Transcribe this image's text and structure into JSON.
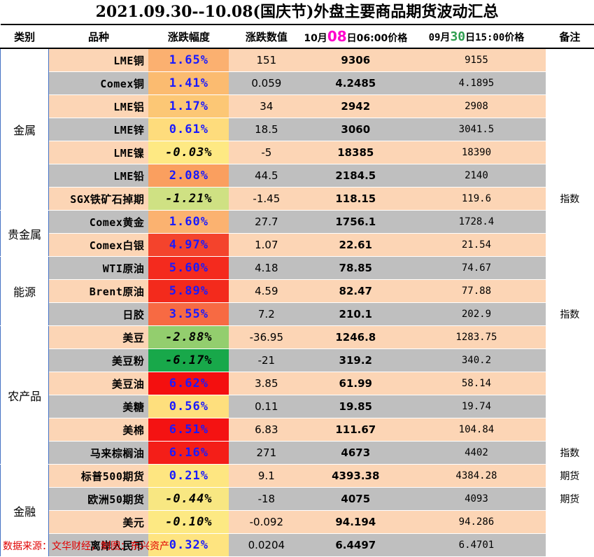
{
  "title": "2021.09.30--10.08(国庆节)外盘主要商品期货波动汇总",
  "headers": {
    "category": "类别",
    "name": "品种",
    "pct": "涨跌幅度",
    "change": "涨跌数值",
    "latest_prefix": "10月",
    "latest_day": "08",
    "latest_suffix": "日06:00价格",
    "prev_prefix": "09月",
    "prev_day": "30",
    "prev_suffix": "日15:00价格",
    "note": "备注"
  },
  "colors": {
    "row_odd": "#fcd5b5",
    "row_even": "#bfbfbf",
    "pct_positive_text": "#1a1aff",
    "footer": "#e00000",
    "highlight_day_latest": "#ff00cc",
    "highlight_day_prev": "#2e9e4f"
  },
  "categories": [
    {
      "label": "金属",
      "rows": [
        {
          "name": "LME铜",
          "pct": "1.65%",
          "change": "151",
          "latest": "9306",
          "prev": "9155",
          "note": "",
          "pct_bg": "#fbb070"
        },
        {
          "name": "Comex铜",
          "pct": "1.41%",
          "change": "0.059",
          "latest": "4.2485",
          "prev": "4.1895",
          "note": "",
          "pct_bg": "#fbbb70"
        },
        {
          "name": "LME铝",
          "pct": "1.17%",
          "change": "34",
          "latest": "2942",
          "prev": "2908",
          "note": "",
          "pct_bg": "#fcc775"
        },
        {
          "name": "LME锌",
          "pct": "0.61%",
          "change": "18.5",
          "latest": "3060",
          "prev": "3041.5",
          "note": "",
          "pct_bg": "#fedc7c"
        },
        {
          "name": "LME镍",
          "pct": "-0.03%",
          "change": "-5",
          "latest": "18385",
          "prev": "18390",
          "note": "",
          "pct_bg": "#fee983"
        },
        {
          "name": "LME铅",
          "pct": "2.08%",
          "change": "44.5",
          "latest": "2184.5",
          "prev": "2140",
          "note": "",
          "pct_bg": "#fa9f5f"
        },
        {
          "name": "SGX铁矿石掉期",
          "pct": "-1.21%",
          "change": "-1.45",
          "latest": "118.15",
          "prev": "119.6",
          "note": "指数",
          "pct_bg": "#cfe183"
        }
      ]
    },
    {
      "label": "贵金属",
      "rows": [
        {
          "name": "Comex黄金",
          "pct": "1.60%",
          "change": "27.7",
          "latest": "1756.1",
          "prev": "1728.4",
          "note": "",
          "pct_bg": "#fbb270"
        },
        {
          "name": "Comex白银",
          "pct": "4.97%",
          "change": "1.07",
          "latest": "22.61",
          "prev": "21.54",
          "note": "",
          "pct_bg": "#f4432c"
        }
      ]
    },
    {
      "label": "能源",
      "rows": [
        {
          "name": "WTI原油",
          "pct": "5.60%",
          "change": "4.18",
          "latest": "78.85",
          "prev": "74.67",
          "note": "",
          "pct_bg": "#f42a1e"
        },
        {
          "name": "Brent原油",
          "pct": "5.89%",
          "change": "4.59",
          "latest": "82.47",
          "prev": "77.88",
          "note": "",
          "pct_bg": "#f32a1c"
        },
        {
          "name": "日胶",
          "pct": "3.55%",
          "change": "7.2",
          "latest": "210.1",
          "prev": "202.9",
          "note": "指数",
          "pct_bg": "#f76a43"
        }
      ]
    },
    {
      "label": "农产品",
      "rows": [
        {
          "name": "美豆",
          "pct": "-2.88%",
          "change": "-36.95",
          "latest": "1246.8",
          "prev": "1283.75",
          "note": "",
          "pct_bg": "#93ce6e"
        },
        {
          "name": "美豆粉",
          "pct": "-6.17%",
          "change": "-21",
          "latest": "319.2",
          "prev": "340.2",
          "note": "",
          "pct_bg": "#18a84a"
        },
        {
          "name": "美豆油",
          "pct": "6.62%",
          "change": "3.85",
          "latest": "61.99",
          "prev": "58.14",
          "note": "",
          "pct_bg": "#f40f0f"
        },
        {
          "name": "美糖",
          "pct": "0.56%",
          "change": "0.11",
          "latest": "19.85",
          "prev": "19.74",
          "note": "",
          "pct_bg": "#fedf7d"
        },
        {
          "name": "美棉",
          "pct": "6.51%",
          "change": "6.83",
          "latest": "111.67",
          "prev": "104.84",
          "note": "",
          "pct_bg": "#f41212"
        },
        {
          "name": "马来棕榈油",
          "pct": "6.16%",
          "change": "271",
          "latest": "4673",
          "prev": "4402",
          "note": "指数",
          "pct_bg": "#f41e18"
        }
      ]
    },
    {
      "label": "金融",
      "rows": [
        {
          "name": "标普500期货",
          "pct": "0.21%",
          "change": "9.1",
          "latest": "4393.38",
          "prev": "4384.28",
          "note": "期货",
          "pct_bg": "#fee681"
        },
        {
          "name": "欧洲50期货",
          "pct": "-0.44%",
          "change": "-18",
          "latest": "4075",
          "prev": "4093",
          "note": "期货",
          "pct_bg": "#f8e782"
        },
        {
          "name": "美元",
          "pct": "-0.10%",
          "change": "-0.092",
          "latest": "94.194",
          "prev": "94.286",
          "note": "",
          "pct_bg": "#fde983"
        },
        {
          "name": "离岸人民币",
          "pct": "0.32%",
          "change": "0.0204",
          "latest": "6.4497",
          "prev": "6.4701",
          "note": "",
          "pct_bg": "#fee480"
        }
      ]
    }
  ],
  "footer": "数据来源：文华财经，制图：东兴资产"
}
